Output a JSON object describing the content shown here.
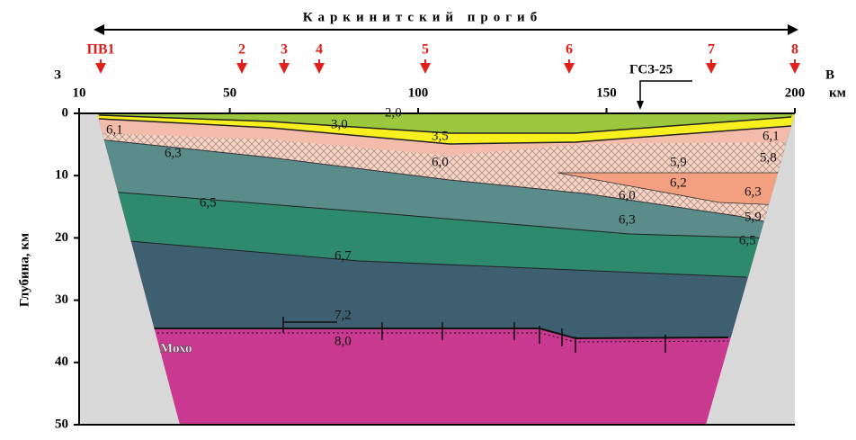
{
  "title": "Каркинитский прогиб",
  "direction": {
    "west": "З",
    "east": "В"
  },
  "x_axis": {
    "unit": "км",
    "ticks": [
      "10",
      "50",
      "100",
      "150",
      "200"
    ]
  },
  "y_axis": {
    "label": "Глубина, км",
    "ticks": [
      "0",
      "10",
      "20",
      "30",
      "40",
      "50"
    ]
  },
  "shot_points": [
    "ПВ1",
    "2",
    "3",
    "4",
    "5",
    "6",
    "7",
    "8"
  ],
  "station": "ГСЗ-25",
  "moho": "Мохо",
  "velocities": [
    "2,0",
    "3,0",
    "3,5",
    "6,1",
    "6,1",
    "6,3",
    "6,0",
    "5,9",
    "5,8",
    "6,2",
    "6,0",
    "6,3",
    "6,3",
    "5,9",
    "6,5",
    "6,5",
    "6,7",
    "7,2",
    "8,0"
  ]
}
